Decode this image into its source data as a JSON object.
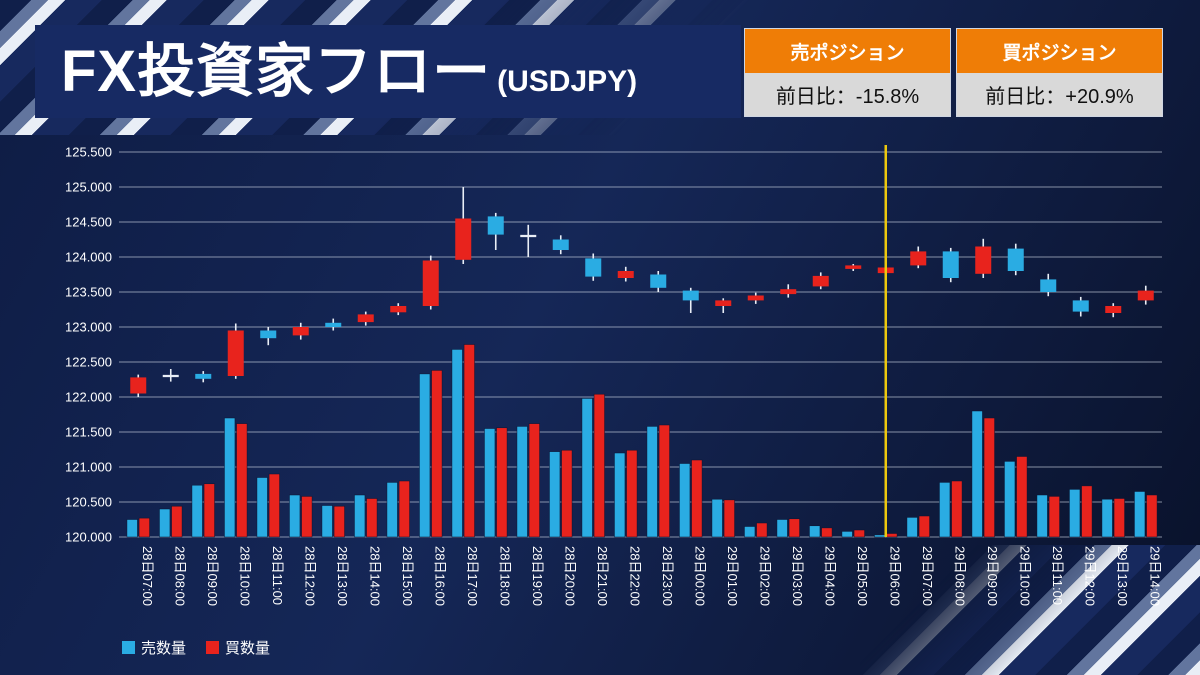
{
  "header": {
    "title": "FX投資家フロー",
    "title_suffix": "(USDJPY)",
    "positions": [
      {
        "label": "売ポジション",
        "value": "前日比：-15.8%"
      },
      {
        "label": "買ポジション",
        "value": "前日比：+20.9%"
      }
    ]
  },
  "chart_data": {
    "type": "candlestick+bar",
    "title": "FX投資家フロー(USDJPY)",
    "instrument": "USDJPY",
    "y_axis": {
      "min": 120.0,
      "max": 125.5,
      "step": 0.5,
      "format_decimals": 3
    },
    "volume_baseline": 120.0,
    "categories": [
      "28日07:00",
      "28日08:00",
      "28日09:00",
      "28日10:00",
      "28日11:00",
      "28日12:00",
      "28日13:00",
      "28日14:00",
      "28日15:00",
      "28日16:00",
      "28日17:00",
      "28日18:00",
      "28日19:00",
      "28日20:00",
      "28日21:00",
      "28日22:00",
      "28日23:00",
      "29日00:00",
      "29日01:00",
      "29日02:00",
      "29日03:00",
      "29日04:00",
      "29日05:00",
      "29日06:00",
      "29日07:00",
      "29日08:00",
      "29日09:00",
      "29日10:00",
      "29日11:00",
      "29日12:00",
      "29日13:00",
      "29日14:00"
    ],
    "candles": [
      {
        "o": 122.05,
        "c": 122.28,
        "h": 122.32,
        "l": 122.0,
        "type": "up"
      },
      {
        "o": 122.3,
        "c": 122.3,
        "h": 122.4,
        "l": 122.22,
        "type": "doji"
      },
      {
        "o": 122.33,
        "c": 122.26,
        "h": 122.37,
        "l": 122.21,
        "type": "down"
      },
      {
        "o": 122.3,
        "c": 122.95,
        "h": 123.05,
        "l": 122.26,
        "type": "up"
      },
      {
        "o": 122.95,
        "c": 122.84,
        "h": 123.0,
        "l": 122.74,
        "type": "down"
      },
      {
        "o": 122.88,
        "c": 123.0,
        "h": 123.06,
        "l": 122.82,
        "type": "up"
      },
      {
        "o": 123.06,
        "c": 123.0,
        "h": 123.12,
        "l": 122.95,
        "type": "down"
      },
      {
        "o": 123.07,
        "c": 123.18,
        "h": 123.22,
        "l": 123.02,
        "type": "up"
      },
      {
        "o": 123.21,
        "c": 123.3,
        "h": 123.34,
        "l": 123.17,
        "type": "up"
      },
      {
        "o": 123.3,
        "c": 123.95,
        "h": 124.02,
        "l": 123.25,
        "type": "up"
      },
      {
        "o": 123.96,
        "c": 124.55,
        "h": 125.0,
        "l": 123.9,
        "type": "up"
      },
      {
        "o": 124.58,
        "c": 124.32,
        "h": 124.63,
        "l": 124.1,
        "type": "down"
      },
      {
        "o": 124.3,
        "c": 124.3,
        "h": 124.46,
        "l": 124.0,
        "type": "doji"
      },
      {
        "o": 124.25,
        "c": 124.1,
        "h": 124.31,
        "l": 124.04,
        "type": "down"
      },
      {
        "o": 123.98,
        "c": 123.72,
        "h": 124.05,
        "l": 123.66,
        "type": "down"
      },
      {
        "o": 123.7,
        "c": 123.8,
        "h": 123.86,
        "l": 123.65,
        "type": "up"
      },
      {
        "o": 123.75,
        "c": 123.56,
        "h": 123.8,
        "l": 123.5,
        "type": "down"
      },
      {
        "o": 123.52,
        "c": 123.38,
        "h": 123.56,
        "l": 123.2,
        "type": "down"
      },
      {
        "o": 123.3,
        "c": 123.38,
        "h": 123.41,
        "l": 123.2,
        "type": "up"
      },
      {
        "o": 123.38,
        "c": 123.45,
        "h": 123.49,
        "l": 123.33,
        "type": "up"
      },
      {
        "o": 123.47,
        "c": 123.54,
        "h": 123.61,
        "l": 123.42,
        "type": "up"
      },
      {
        "o": 123.58,
        "c": 123.73,
        "h": 123.78,
        "l": 123.54,
        "type": "up"
      },
      {
        "o": 123.83,
        "c": 123.88,
        "h": 123.9,
        "l": 123.8,
        "type": "up"
      },
      {
        "o": 123.77,
        "c": 123.85,
        "h": 123.88,
        "l": 123.73,
        "type": "up"
      },
      {
        "o": 123.88,
        "c": 124.08,
        "h": 124.15,
        "l": 123.84,
        "type": "up"
      },
      {
        "o": 124.08,
        "c": 123.7,
        "h": 124.13,
        "l": 123.64,
        "type": "down"
      },
      {
        "o": 123.76,
        "c": 124.15,
        "h": 124.26,
        "l": 123.7,
        "type": "up"
      },
      {
        "o": 124.12,
        "c": 123.8,
        "h": 124.19,
        "l": 123.74,
        "type": "down"
      },
      {
        "o": 123.68,
        "c": 123.5,
        "h": 123.76,
        "l": 123.44,
        "type": "down"
      },
      {
        "o": 123.38,
        "c": 123.22,
        "h": 123.43,
        "l": 123.15,
        "type": "down"
      },
      {
        "o": 123.2,
        "c": 123.3,
        "h": 123.34,
        "l": 123.14,
        "type": "up"
      },
      {
        "o": 123.38,
        "c": 123.52,
        "h": 123.59,
        "l": 123.32,
        "type": "up"
      }
    ],
    "volumes": {
      "sell": [
        120.25,
        120.4,
        120.74,
        121.7,
        120.85,
        120.6,
        120.45,
        120.6,
        120.78,
        122.33,
        122.68,
        121.55,
        121.58,
        121.22,
        121.98,
        121.2,
        121.58,
        121.05,
        120.54,
        120.15,
        120.25,
        120.16,
        120.08,
        120.03,
        120.28,
        120.78,
        121.8,
        121.08,
        120.6,
        120.68,
        120.54,
        120.65
      ],
      "buy": [
        120.27,
        120.44,
        120.76,
        121.62,
        120.9,
        120.58,
        120.44,
        120.55,
        120.8,
        122.38,
        122.75,
        121.56,
        121.62,
        121.24,
        122.04,
        121.24,
        121.6,
        121.1,
        120.53,
        120.2,
        120.26,
        120.13,
        120.1,
        120.05,
        120.3,
        120.8,
        121.7,
        121.15,
        120.58,
        120.73,
        120.55,
        120.6
      ]
    },
    "legend": [
      {
        "label": "売数量",
        "color": "#2aace3"
      },
      {
        "label": "買数量",
        "color": "#e8231d"
      }
    ],
    "annotations": {
      "vertical_line": {
        "category": "29日06:00",
        "index": 23,
        "color": "#edc80e"
      }
    },
    "colors": {
      "up": "#e8231d",
      "down": "#2aace3",
      "wick": "#e9eef6",
      "grid": "#d7dfeb",
      "axis_text": "#ffffff"
    }
  }
}
